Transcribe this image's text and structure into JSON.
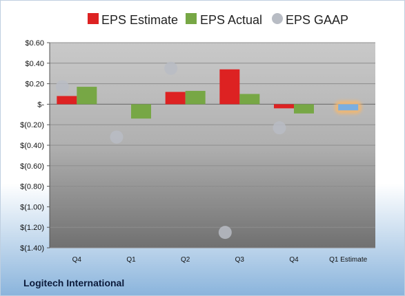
{
  "chart_data": {
    "type": "bar",
    "categories": [
      "Q4",
      "Q1",
      "Q2",
      "Q3",
      "Q4",
      "Q1 Estimate"
    ],
    "series": [
      {
        "name": "EPS Estimate",
        "kind": "bar",
        "color": "#dd2222",
        "values": [
          0.08,
          null,
          0.12,
          0.34,
          -0.04,
          null
        ]
      },
      {
        "name": "EPS Actual",
        "kind": "bar",
        "color": "#77a745",
        "values": [
          0.17,
          -0.14,
          0.13,
          0.1,
          -0.09,
          null
        ]
      },
      {
        "name": "EPS GAAP",
        "kind": "point",
        "color": "#b8bcc4",
        "values": [
          0.17,
          -0.32,
          0.35,
          -1.25,
          -0.23,
          null
        ]
      },
      {
        "name": "",
        "kind": "highlight-bar",
        "color": "#7aaee0",
        "values": [
          null,
          null,
          null,
          null,
          null,
          -0.06
        ]
      }
    ],
    "ylim": [
      -1.4,
      0.6
    ],
    "yticks": [
      0.6,
      0.4,
      0.2,
      0,
      -0.2,
      -0.4,
      -0.6,
      -0.8,
      -1.0,
      -1.2,
      -1.4
    ],
    "ytick_labels": [
      "$0.60",
      "$0.40",
      "$0.20",
      "$-",
      "$(0.20)",
      "$(0.40)",
      "$(0.60)",
      "$(0.80)",
      "$(1.00)",
      "$(1.20)",
      "$(1.40)"
    ],
    "grid": true,
    "legend": "top"
  },
  "footer": {
    "company": "Logitech International"
  },
  "colors": {
    "frame": "#8ab4dc",
    "plot_top": "#c9c9c9",
    "plot_bottom": "#707070",
    "gridline": "#8d8d8d",
    "estimate_glow": "#f3b770"
  }
}
